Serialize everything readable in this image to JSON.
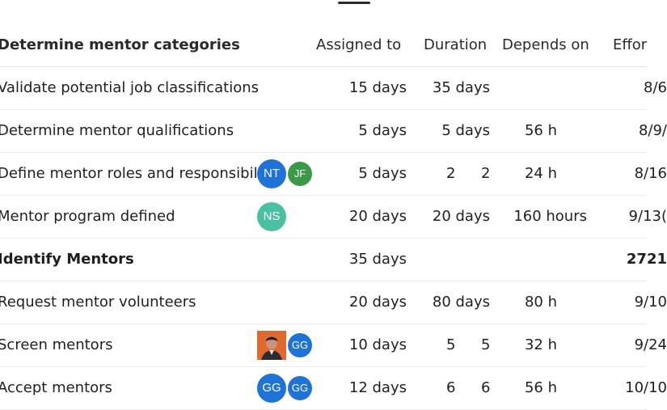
{
  "colors": {
    "avatar_blue": "#1f73d6",
    "avatar_green": "#3a9a48",
    "avatar_teal": "#49bfa3",
    "avatar_orange": "#e06a2e"
  },
  "header": {
    "name": "Determine mentor categories",
    "assigned": "Assigned to",
    "duration": "Duration",
    "depends": "Depends on",
    "effort": "Effor"
  },
  "rows": [
    {
      "name": "Validate potential job classifications",
      "duration": "15 days",
      "work": "35 days",
      "depends": "",
      "date": "8/6"
    },
    {
      "name": "Determine mentor qualifications",
      "duration": "5 days",
      "work": "5 days",
      "depends": "56 h",
      "date": "8/9/"
    },
    {
      "name": "Define mentor roles and responsibili",
      "avatars": [
        "NT",
        "JF"
      ],
      "duration": "5 days",
      "work_a": "2",
      "work_b": "2",
      "depends": "24 h",
      "date": "8/16"
    },
    {
      "name": "Mentor program defined",
      "avatars": [
        "NS"
      ],
      "duration": "20 days",
      "work": "20 days",
      "depends": "160 hours",
      "date": "9/13("
    },
    {
      "name": "Identify Mentors",
      "duration": "35 days",
      "work": "",
      "depends": "",
      "date": "2721"
    },
    {
      "name": "Request mentor volunteers",
      "duration": "20 days",
      "work": "80 days",
      "depends": "80 h",
      "date": "9/10"
    },
    {
      "name": "Screen mentors",
      "avatars": [
        "photo",
        "GG"
      ],
      "duration": "10 days",
      "work_a": "5",
      "work_b": "5",
      "depends": "32 h",
      "date": "9/24"
    },
    {
      "name": "Accept mentors",
      "avatars": [
        "GG",
        "GG"
      ],
      "duration": "12 days",
      "work_a": "6",
      "work_b": "6",
      "depends": "56 h",
      "date": "10/10"
    }
  ]
}
